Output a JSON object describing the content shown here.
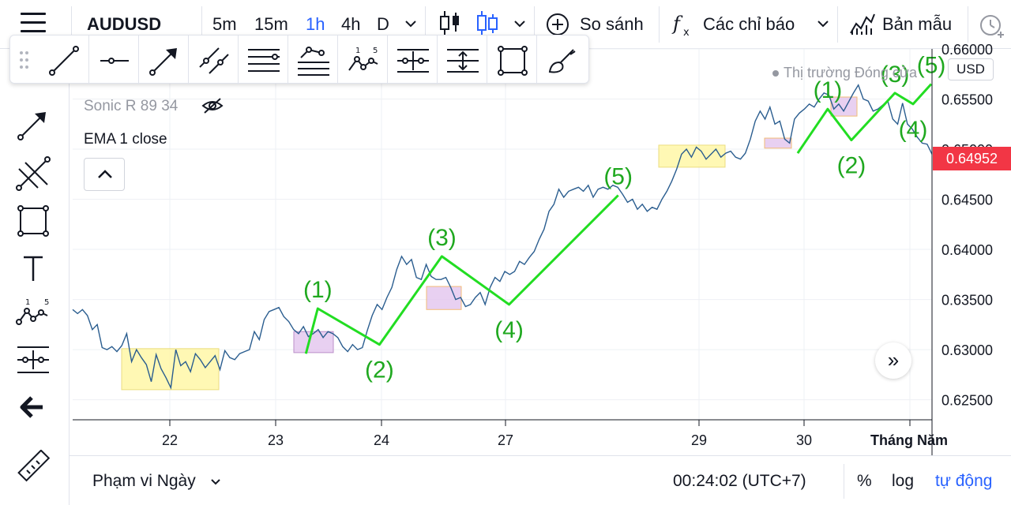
{
  "header": {
    "symbol": "AUDUSD",
    "timeframes": [
      "5m",
      "15m",
      "1h",
      "4h",
      "D"
    ],
    "active_timeframe": "1h",
    "compare_label": "So sánh",
    "indicators_label": "Các chỉ báo",
    "templates_label": "Bản mẫu"
  },
  "legend": {
    "indicator1": "Sonic R 89 34",
    "indicator2": "EMA 1 close"
  },
  "market_status": "Thị trường Đóng cửa",
  "currency": "USD",
  "last_price": "0.64952",
  "bottom": {
    "range_label": "Phạm vi Ngày",
    "clock": "00:24:02 (UTC+7)",
    "percent": "%",
    "log": "log",
    "auto": "tự động"
  },
  "colors": {
    "price_line": "#2a5d8f",
    "wave_line": "#22dd22",
    "wave_label": "#1fa81f",
    "yellow_zone": "#fff7a8",
    "purple_zone": "#e5c8ef",
    "price_tag": "#f23645",
    "accent": "#2962ff"
  },
  "chart_data": {
    "type": "line",
    "ylim": [
      0.623,
      0.66
    ],
    "y_ticks": [
      "0.66000",
      "0.65500",
      "0.65000",
      "0.64500",
      "0.64000",
      "0.63500",
      "0.63000",
      "0.62500"
    ],
    "x_ticks": [
      "22",
      "23",
      "24",
      "27",
      "29",
      "30",
      "Tháng Năm"
    ],
    "series": [
      {
        "values": [
          0.634,
          0.6336,
          0.634,
          0.6334,
          0.632,
          0.6325,
          0.6302,
          0.63,
          0.6303,
          0.6298,
          0.6304,
          0.6316,
          0.6288,
          0.63,
          0.6292,
          0.6285,
          0.6268,
          0.6295,
          0.6281,
          0.6272,
          0.6262,
          0.63,
          0.6284,
          0.6288,
          0.6278,
          0.6296,
          0.629,
          0.6282,
          0.6288,
          0.6294,
          0.628,
          0.6299,
          0.6292,
          0.629,
          0.6296,
          0.6298,
          0.63,
          0.6318,
          0.631,
          0.633,
          0.6338,
          0.634,
          0.6342,
          0.6333,
          0.6328,
          0.632,
          0.6316,
          0.6323,
          0.6313,
          0.6316,
          0.632,
          0.6312,
          0.6318,
          0.6316,
          0.6312,
          0.6303,
          0.6298,
          0.6305,
          0.63,
          0.6302,
          0.6319,
          0.6334,
          0.6345,
          0.634,
          0.6352,
          0.6362,
          0.638,
          0.6393,
          0.6385,
          0.639,
          0.6372,
          0.637,
          0.6385,
          0.6373,
          0.637,
          0.637,
          0.6372,
          0.6362,
          0.635,
          0.6352,
          0.6343,
          0.6345,
          0.6352,
          0.6357,
          0.6345,
          0.6362,
          0.6372,
          0.6368,
          0.6378,
          0.6375,
          0.6378,
          0.6388,
          0.6385,
          0.6392,
          0.6398,
          0.641,
          0.642,
          0.6438,
          0.6445,
          0.646,
          0.6452,
          0.6458,
          0.646,
          0.6462,
          0.6458,
          0.6464,
          0.6452,
          0.646,
          0.6462,
          0.646,
          0.6464,
          0.6462,
          0.6455,
          0.6447,
          0.645,
          0.644,
          0.6445,
          0.6438,
          0.6442,
          0.644,
          0.645,
          0.6458,
          0.6468,
          0.648,
          0.6495,
          0.65,
          0.6492,
          0.6502,
          0.6498,
          0.649,
          0.6495,
          0.65,
          0.6492,
          0.6496,
          0.6498,
          0.6492,
          0.649,
          0.6496,
          0.651,
          0.6528,
          0.6538,
          0.653,
          0.6542,
          0.6525,
          0.6528,
          0.651,
          0.6506,
          0.653,
          0.6536,
          0.654,
          0.6545,
          0.6542,
          0.655,
          0.6556,
          0.6554,
          0.654,
          0.6545,
          0.6538,
          0.6547,
          0.6556,
          0.6564,
          0.655,
          0.6548,
          0.6538,
          0.654,
          0.6544,
          0.6548,
          0.653,
          0.6525,
          0.6546,
          0.6525,
          0.652,
          0.6512,
          0.6506,
          0.6505,
          0.6495
        ]
      }
    ],
    "waves": [
      {
        "x": 0.295,
        "y": 0.6296,
        "label": ""
      },
      {
        "x": 0.31,
        "y": 0.6341,
        "label": "(1)"
      },
      {
        "x": 0.388,
        "y": 0.6305,
        "label": "(2)"
      },
      {
        "x": 0.467,
        "y": 0.6393,
        "label": "(3)"
      },
      {
        "x": 0.552,
        "y": 0.6345,
        "label": "(4)"
      },
      {
        "x": 0.69,
        "y": 0.6454,
        "label": "(5)"
      },
      {
        "x": 0.917,
        "y": 0.6496,
        "label": ""
      },
      {
        "x": 0.955,
        "y": 0.654,
        "label": "(1)"
      },
      {
        "x": 0.985,
        "y": 0.6509,
        "label": "(2)"
      },
      {
        "x": 1.04,
        "y": 0.6556,
        "label": "(3)"
      },
      {
        "x": 1.063,
        "y": 0.6545,
        "label": "(4)"
      },
      {
        "x": 1.086,
        "y": 0.6565,
        "label": "(5)"
      }
    ]
  }
}
